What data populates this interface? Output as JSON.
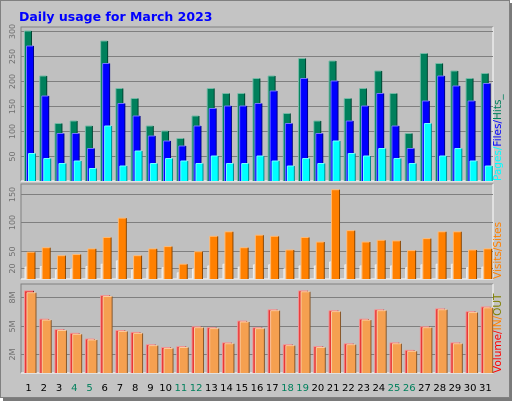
{
  "title": "Daily usage for March 2023",
  "colors": {
    "frame_bg": "#c4c4c4",
    "plot_bg": "#c0c0c0",
    "title": "#0000ff",
    "hits": "#00805c",
    "files": "#0000ff",
    "pages": "#00ffff",
    "visits": "#ff8000",
    "sites": "#ff8000",
    "volume": "#ff0000",
    "in": "#ff8000",
    "out": "#808000",
    "weekend_label": "#00805c",
    "weekday_label": "#000000"
  },
  "chart_data": [
    {
      "type": "bar",
      "name": "hits-files-pages",
      "legend": [
        {
          "text": "Pages",
          "color": "#00ffff"
        },
        {
          "text": "Files",
          "color": "#0000ff"
        },
        {
          "text": "Hits",
          "color": "#00805c"
        }
      ],
      "legend_separators": [
        "/",
        "/"
      ],
      "legend_trailer": "_",
      "ylim": [
        0,
        300
      ],
      "yticks": [
        50,
        100,
        150,
        200,
        250,
        300
      ],
      "categories": [
        "1",
        "2",
        "3",
        "4",
        "5",
        "6",
        "7",
        "8",
        "9",
        "10",
        "11",
        "12",
        "13",
        "14",
        "15",
        "16",
        "17",
        "18",
        "19",
        "20",
        "21",
        "22",
        "23",
        "24",
        "25",
        "26",
        "27",
        "28",
        "29",
        "30",
        "31"
      ],
      "series": [
        {
          "key": "hits",
          "values": [
            300,
            210,
            115,
            120,
            110,
            280,
            185,
            165,
            110,
            100,
            85,
            130,
            185,
            175,
            175,
            205,
            210,
            135,
            245,
            120,
            240,
            165,
            185,
            220,
            175,
            95,
            255,
            235,
            220,
            205,
            215
          ]
        },
        {
          "key": "files",
          "values": [
            270,
            170,
            95,
            95,
            65,
            235,
            155,
            130,
            90,
            80,
            70,
            110,
            145,
            150,
            150,
            155,
            180,
            115,
            205,
            95,
            200,
            120,
            150,
            175,
            110,
            65,
            160,
            210,
            190,
            160,
            195
          ]
        },
        {
          "key": "pages",
          "values": [
            55,
            45,
            35,
            40,
            25,
            110,
            30,
            60,
            35,
            45,
            40,
            35,
            50,
            35,
            35,
            50,
            40,
            30,
            45,
            35,
            80,
            55,
            50,
            65,
            45,
            35,
            115,
            50,
            65,
            40,
            30
          ]
        }
      ]
    },
    {
      "type": "bar",
      "name": "visits-sites",
      "legend": [
        {
          "text": "Visits",
          "color": "#ff8000"
        },
        {
          "text": "Sites",
          "color": "#ff8000"
        }
      ],
      "legend_separators": [
        "/"
      ],
      "ylim": [
        0,
        160
      ],
      "yticks": [
        20,
        50,
        100,
        150
      ],
      "categories": [
        "1",
        "2",
        "3",
        "4",
        "5",
        "6",
        "7",
        "8",
        "9",
        "10",
        "11",
        "12",
        "13",
        "14",
        "15",
        "16",
        "17",
        "18",
        "19",
        "20",
        "21",
        "22",
        "23",
        "24",
        "25",
        "26",
        "27",
        "28",
        "29",
        "30",
        "31"
      ],
      "series": [
        {
          "key": "visits",
          "values": [
            47,
            55,
            41,
            43,
            53,
            73,
            107,
            41,
            53,
            57,
            26,
            48,
            75,
            83,
            55,
            77,
            75,
            51,
            73,
            65,
            157,
            85,
            65,
            68,
            67,
            50,
            71,
            83,
            83,
            51,
            53
          ]
        },
        {
          "key": "sites",
          "values": [
            21,
            22,
            16,
            18,
            22,
            26,
            32,
            16,
            18,
            20,
            11,
            18,
            23,
            26,
            21,
            25,
            25,
            18,
            23,
            23,
            30,
            25,
            23,
            25,
            23,
            20,
            25,
            26,
            26,
            20,
            21
          ]
        }
      ]
    },
    {
      "type": "bar",
      "name": "volume",
      "legend": [
        {
          "text": "Volume",
          "color": "#ff0000"
        },
        {
          "text": "IN",
          "color": "#ff8000"
        },
        {
          "text": "OUT",
          "color": "#808000"
        }
      ],
      "legend_separators": [
        "/",
        "/"
      ],
      "unit": "MB",
      "ylim": [
        0,
        9
      ],
      "yticks": [
        2,
        5,
        8
      ],
      "ytick_labels": [
        "2M",
        "5M",
        "8M"
      ],
      "categories": [
        "1",
        "2",
        "3",
        "4",
        "5",
        "6",
        "7",
        "8",
        "9",
        "10",
        "11",
        "12",
        "13",
        "14",
        "15",
        "16",
        "17",
        "18",
        "19",
        "20",
        "21",
        "22",
        "23",
        "24",
        "25",
        "26",
        "27",
        "28",
        "29",
        "30",
        "31"
      ],
      "series": [
        {
          "key": "volume",
          "values": [
            8.7,
            5.7,
            4.6,
            4.2,
            3.6,
            8.2,
            4.5,
            4.3,
            3.0,
            2.7,
            2.8,
            4.9,
            4.8,
            3.2,
            5.5,
            4.8,
            6.7,
            3.0,
            8.7,
            2.8,
            6.6,
            3.1,
            5.7,
            6.7,
            3.2,
            2.4,
            4.9,
            6.8,
            3.2,
            6.5,
            7.0
          ]
        },
        {
          "key": "in",
          "values": [
            8.5,
            5.6,
            4.5,
            4.1,
            3.5,
            8.1,
            4.4,
            4.2,
            2.9,
            2.6,
            2.7,
            4.8,
            4.7,
            3.1,
            5.4,
            4.7,
            6.6,
            2.9,
            8.6,
            2.7,
            6.5,
            3.0,
            5.6,
            6.6,
            3.1,
            2.3,
            4.8,
            6.7,
            3.1,
            6.4,
            6.9
          ]
        }
      ]
    }
  ],
  "x_labels": [
    {
      "text": "1",
      "weekend": false
    },
    {
      "text": "2",
      "weekend": false
    },
    {
      "text": "3",
      "weekend": false
    },
    {
      "text": "4",
      "weekend": true
    },
    {
      "text": "5",
      "weekend": true
    },
    {
      "text": "6",
      "weekend": false
    },
    {
      "text": "7",
      "weekend": false
    },
    {
      "text": "8",
      "weekend": false
    },
    {
      "text": "9",
      "weekend": false
    },
    {
      "text": "10",
      "weekend": false
    },
    {
      "text": "11",
      "weekend": true
    },
    {
      "text": "12",
      "weekend": true
    },
    {
      "text": "13",
      "weekend": false
    },
    {
      "text": "14",
      "weekend": false
    },
    {
      "text": "15",
      "weekend": false
    },
    {
      "text": "16",
      "weekend": false
    },
    {
      "text": "17",
      "weekend": false
    },
    {
      "text": "18",
      "weekend": true
    },
    {
      "text": "19",
      "weekend": true
    },
    {
      "text": "20",
      "weekend": false
    },
    {
      "text": "21",
      "weekend": false
    },
    {
      "text": "22",
      "weekend": false
    },
    {
      "text": "23",
      "weekend": false
    },
    {
      "text": "24",
      "weekend": false
    },
    {
      "text": "25",
      "weekend": true
    },
    {
      "text": "26",
      "weekend": true
    },
    {
      "text": "27",
      "weekend": false
    },
    {
      "text": "28",
      "weekend": false
    },
    {
      "text": "29",
      "weekend": false
    },
    {
      "text": "30",
      "weekend": false
    },
    {
      "text": "31",
      "weekend": false
    }
  ]
}
